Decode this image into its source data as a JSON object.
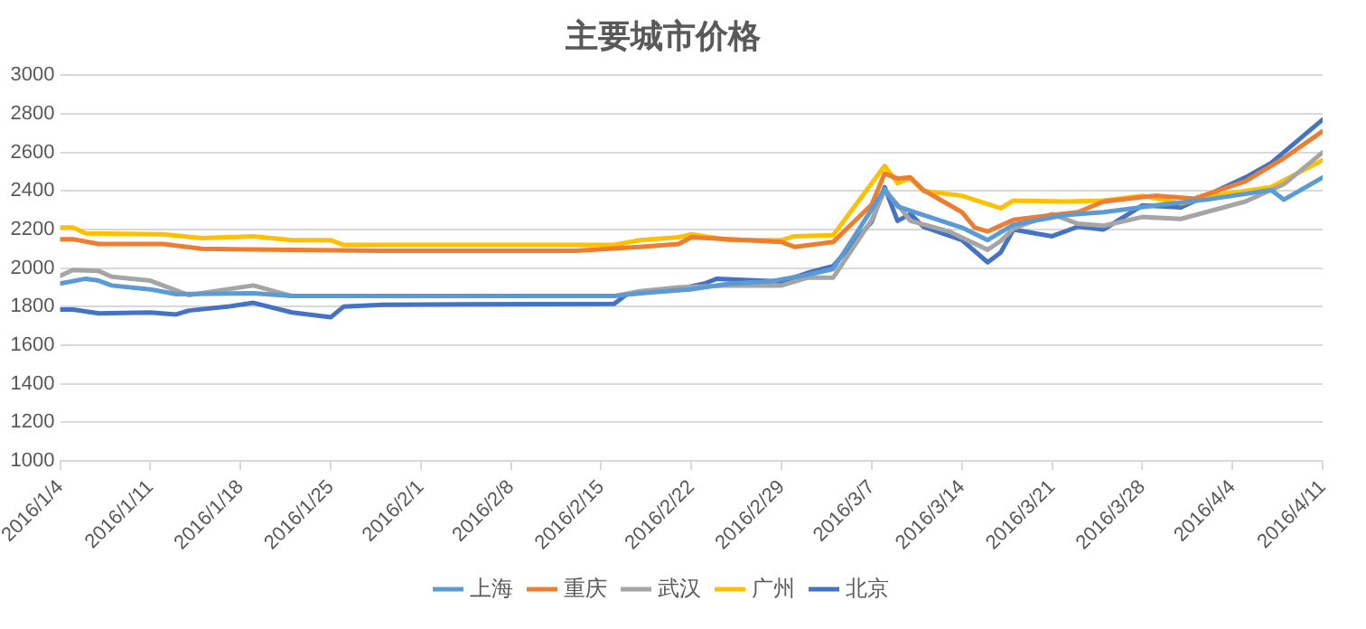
{
  "chart_data": {
    "type": "line",
    "title": "主要城市价格",
    "xlim": [
      "2016-01-04",
      "2016-04-11"
    ],
    "xticks": [
      {
        "value": "2016-01-04",
        "label": "2016/1/4"
      },
      {
        "value": "2016-01-11",
        "label": "2016/1/11"
      },
      {
        "value": "2016-01-18",
        "label": "2016/1/18"
      },
      {
        "value": "2016-01-25",
        "label": "2016/1/25"
      },
      {
        "value": "2016-02-01",
        "label": "2016/2/1"
      },
      {
        "value": "2016-02-08",
        "label": "2016/2/8"
      },
      {
        "value": "2016-02-15",
        "label": "2016/2/15"
      },
      {
        "value": "2016-02-22",
        "label": "2016/2/22"
      },
      {
        "value": "2016-02-29",
        "label": "2016/2/29"
      },
      {
        "value": "2016-03-07",
        "label": "2016/3/7"
      },
      {
        "value": "2016-03-14",
        "label": "2016/3/14"
      },
      {
        "value": "2016-03-21",
        "label": "2016/3/21"
      },
      {
        "value": "2016-03-28",
        "label": "2016/3/28"
      },
      {
        "value": "2016-04-04",
        "label": "2016/4/4"
      },
      {
        "value": "2016-04-11",
        "label": "2016/4/11"
      }
    ],
    "ylim": [
      1000,
      3000
    ],
    "yticks": [
      1000,
      1200,
      1400,
      1600,
      1800,
      2000,
      2200,
      2400,
      2600,
      2800,
      3000
    ],
    "grid": "y",
    "legend": "bottom",
    "marker": "none",
    "line_style": "solid",
    "series": [
      {
        "name": "上海",
        "color": "#5b9bd5",
        "x": [
          "2016-01-04",
          "2016-01-06",
          "2016-01-07",
          "2016-01-08",
          "2016-01-11",
          "2016-01-13",
          "2016-01-19",
          "2016-01-22",
          "2016-02-16",
          "2016-02-18",
          "2016-02-22",
          "2016-02-25",
          "2016-02-28",
          "2016-03-02",
          "2016-03-04",
          "2016-03-06",
          "2016-03-08",
          "2016-03-09",
          "2016-03-11",
          "2016-03-14",
          "2016-03-16",
          "2016-03-18",
          "2016-03-22",
          "2016-03-25",
          "2016-03-29",
          "2016-04-02",
          "2016-04-07",
          "2016-04-08",
          "2016-04-11"
        ],
        "values": [
          1920,
          1945,
          1935,
          1910,
          1890,
          1865,
          1870,
          1855,
          1855,
          1870,
          1890,
          1920,
          1930,
          1965,
          1995,
          2200,
          2410,
          2320,
          2275,
          2210,
          2145,
          2225,
          2275,
          2290,
          2325,
          2355,
          2405,
          2355,
          2470
        ]
      },
      {
        "name": "重庆",
        "color": "#ed7d31",
        "x": [
          "2016-01-04",
          "2016-01-05",
          "2016-01-07",
          "2016-01-12",
          "2016-01-15",
          "2016-01-29",
          "2016-02-13",
          "2016-02-18",
          "2016-02-21",
          "2016-02-22",
          "2016-02-29",
          "2016-03-01",
          "2016-03-04",
          "2016-03-07",
          "2016-03-08",
          "2016-03-09",
          "2016-03-10",
          "2016-03-11",
          "2016-03-14",
          "2016-03-15",
          "2016-03-16",
          "2016-03-18",
          "2016-03-21",
          "2016-03-23",
          "2016-03-25",
          "2016-03-29",
          "2016-04-01",
          "2016-04-05",
          "2016-04-08",
          "2016-04-11"
        ],
        "values": [
          2150,
          2150,
          2125,
          2125,
          2100,
          2090,
          2090,
          2110,
          2125,
          2160,
          2135,
          2110,
          2135,
          2330,
          2490,
          2465,
          2470,
          2405,
          2290,
          2210,
          2190,
          2250,
          2275,
          2290,
          2345,
          2375,
          2360,
          2450,
          2570,
          2710
        ]
      },
      {
        "name": "武汉",
        "color": "#a5a5a5",
        "x": [
          "2016-01-04",
          "2016-01-05",
          "2016-01-07",
          "2016-01-08",
          "2016-01-11",
          "2016-01-14",
          "2016-01-19",
          "2016-01-22",
          "2016-02-16",
          "2016-02-18",
          "2016-02-21",
          "2016-02-25",
          "2016-02-29",
          "2016-03-02",
          "2016-03-04",
          "2016-03-07",
          "2016-03-08",
          "2016-03-09",
          "2016-03-10",
          "2016-03-13",
          "2016-03-16",
          "2016-03-17",
          "2016-03-18",
          "2016-03-21",
          "2016-03-23",
          "2016-03-25",
          "2016-03-28",
          "2016-03-31",
          "2016-04-05",
          "2016-04-08",
          "2016-04-11"
        ],
        "values": [
          1960,
          1990,
          1985,
          1955,
          1935,
          1860,
          1910,
          1855,
          1855,
          1880,
          1900,
          1910,
          1910,
          1950,
          1950,
          2250,
          2400,
          2330,
          2245,
          2190,
          2095,
          2140,
          2205,
          2280,
          2230,
          2220,
          2265,
          2255,
          2345,
          2435,
          2600
        ]
      },
      {
        "name": "广州",
        "color": "#ffc000",
        "x": [
          "2016-01-04",
          "2016-01-05",
          "2016-01-06",
          "2016-01-12",
          "2016-01-15",
          "2016-01-19",
          "2016-01-22",
          "2016-01-25",
          "2016-01-26",
          "2016-02-16",
          "2016-02-18",
          "2016-02-21",
          "2016-02-22",
          "2016-02-25",
          "2016-02-29",
          "2016-03-01",
          "2016-03-04",
          "2016-03-08",
          "2016-03-09",
          "2016-03-10",
          "2016-03-11",
          "2016-03-14",
          "2016-03-17",
          "2016-03-18",
          "2016-03-22",
          "2016-03-25",
          "2016-03-28",
          "2016-03-31",
          "2016-04-03",
          "2016-04-07",
          "2016-04-11"
        ],
        "values": [
          2210,
          2210,
          2180,
          2175,
          2155,
          2165,
          2145,
          2145,
          2120,
          2120,
          2145,
          2160,
          2175,
          2145,
          2145,
          2165,
          2170,
          2530,
          2440,
          2465,
          2400,
          2375,
          2310,
          2350,
          2345,
          2350,
          2375,
          2335,
          2380,
          2420,
          2560
        ]
      },
      {
        "name": "北京",
        "color": "#4472c4",
        "x": [
          "2016-01-04",
          "2016-01-05",
          "2016-01-07",
          "2016-01-11",
          "2016-01-13",
          "2016-01-14",
          "2016-01-17",
          "2016-01-19",
          "2016-01-22",
          "2016-01-25",
          "2016-01-26",
          "2016-01-29",
          "2016-02-16",
          "2016-02-17",
          "2016-02-21",
          "2016-02-23",
          "2016-02-24",
          "2016-02-29",
          "2016-03-02",
          "2016-03-04",
          "2016-03-07",
          "2016-03-08",
          "2016-03-09",
          "2016-03-10",
          "2016-03-11",
          "2016-03-14",
          "2016-03-16",
          "2016-03-17",
          "2016-03-18",
          "2016-03-21",
          "2016-03-23",
          "2016-03-25",
          "2016-03-28",
          "2016-03-31",
          "2016-04-05",
          "2016-04-07",
          "2016-04-11"
        ],
        "values": [
          1785,
          1785,
          1765,
          1770,
          1760,
          1780,
          1800,
          1820,
          1770,
          1745,
          1800,
          1810,
          1815,
          1865,
          1890,
          1920,
          1945,
          1930,
          1975,
          2010,
          2240,
          2420,
          2245,
          2280,
          2215,
          2145,
          2030,
          2080,
          2200,
          2165,
          2215,
          2200,
          2325,
          2315,
          2470,
          2545,
          2770
        ]
      }
    ]
  }
}
